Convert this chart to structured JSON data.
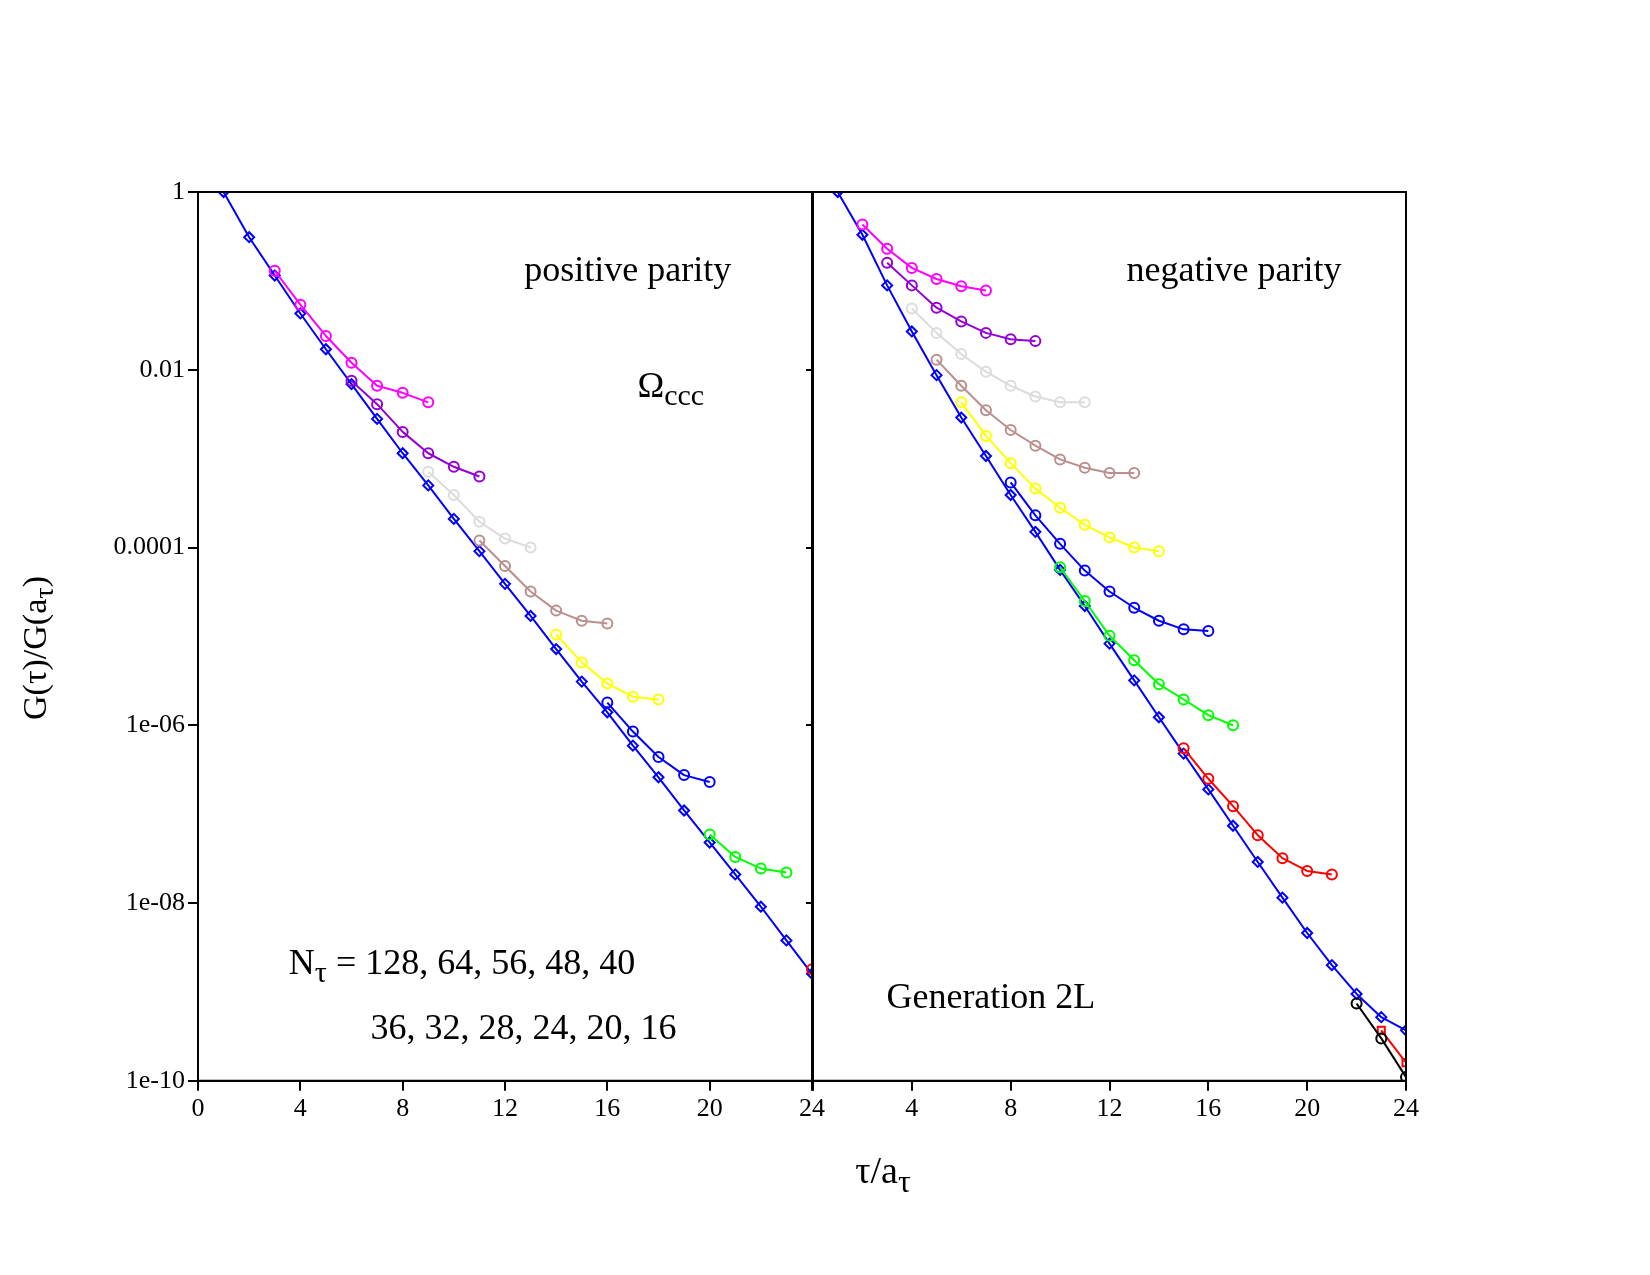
{
  "chart_data": [
    {
      "type": "line",
      "ylabel": "G(τ)/G(a$_{τ}$)",
      "xlabel": "τ/a$_{τ}$",
      "log": "y",
      "x": [
        1,
        2,
        3,
        4,
        5,
        6,
        7,
        8,
        9,
        10,
        11,
        12,
        13,
        14,
        15,
        16,
        17,
        18,
        19,
        20,
        21,
        22,
        23,
        24
      ],
      "xlim": [
        0,
        24
      ],
      "xticks": [
        0,
        4,
        8,
        12,
        16,
        20,
        24
      ],
      "ylim": [
        1e-10,
        1
      ],
      "yticks": [
        {
          "value": 1e-10,
          "label": "1e-10"
        },
        {
          "value": 1e-08,
          "label": "1e-08"
        },
        {
          "value": 1e-06,
          "label": "1e-06"
        },
        {
          "value": 0.0001,
          "label": "0.0001"
        },
        {
          "value": 0.01,
          "label": "0.01"
        },
        {
          "value": 1,
          "label": "1"
        }
      ],
      "annotations": [
        "positive parity",
        "Ω$_{ccc}$",
        "N$_{τ}$ = 128, 64, 56, 48, 40",
        "36, 32, 28, 24, 20, 16"
      ],
      "series": [
        {
          "color": "#ff00ff",
          "marker": "circle",
          "values": [
            null,
            null,
            0.13,
            0.054,
            0.024,
            0.012,
            0.0066,
            0.0055,
            0.0043,
            null,
            null,
            null,
            null,
            null,
            null,
            null,
            null,
            null,
            null,
            null,
            null,
            null,
            null,
            null
          ]
        },
        {
          "color": "#9400d3",
          "marker": "circle",
          "values": [
            null,
            null,
            null,
            null,
            null,
            0.0075,
            0.0041,
            0.002,
            0.00115,
            0.00081,
            0.00063,
            null,
            null,
            null,
            null,
            null,
            null,
            null,
            null,
            null,
            null,
            null,
            null,
            null
          ]
        },
        {
          "color": "#dcdcdc",
          "marker": "circle",
          "values": [
            null,
            null,
            null,
            null,
            null,
            null,
            null,
            null,
            0.00071,
            0.00039,
            0.000195,
            0.000126,
            0.0001,
            null,
            null,
            null,
            null,
            null,
            null,
            null,
            null,
            null,
            null,
            null
          ]
        },
        {
          "color": "#bc8f8f",
          "marker": "circle",
          "values": [
            null,
            null,
            null,
            null,
            null,
            null,
            null,
            null,
            null,
            null,
            0.00012,
            6.2e-05,
            3.2e-05,
            1.95e-05,
            1.5e-05,
            1.4e-05,
            null,
            null,
            null,
            null,
            null,
            null,
            null,
            null
          ]
        },
        {
          "color": "#ffff00",
          "marker": "circle",
          "values": [
            null,
            null,
            null,
            null,
            null,
            null,
            null,
            null,
            null,
            null,
            null,
            null,
            null,
            1.05e-05,
            5.1e-06,
            2.95e-06,
            2.1e-06,
            1.95e-06,
            null,
            null,
            null,
            null,
            null,
            null
          ]
        },
        {
          "color": "#0000ff",
          "marker": "circle",
          "values": [
            null,
            null,
            null,
            null,
            null,
            null,
            null,
            null,
            null,
            null,
            null,
            null,
            null,
            null,
            null,
            1.8e-06,
            8.5e-07,
            4.4e-07,
            2.75e-07,
            2.3e-07,
            null,
            null,
            null,
            null
          ]
        },
        {
          "color": "#00ff00",
          "marker": "circle",
          "values": [
            null,
            null,
            null,
            null,
            null,
            null,
            null,
            null,
            null,
            null,
            null,
            null,
            null,
            null,
            null,
            null,
            null,
            null,
            null,
            5.9e-08,
            3.3e-08,
            2.45e-08,
            2.2e-08,
            null
          ]
        },
        {
          "color": "#ff0000",
          "marker": "circle",
          "values": [
            null,
            null,
            null,
            null,
            null,
            null,
            null,
            null,
            null,
            null,
            null,
            null,
            null,
            null,
            null,
            null,
            null,
            null,
            null,
            null,
            null,
            null,
            null,
            1.8e-09
          ]
        },
        {
          "color": "#0000ff",
          "marker": "diamond",
          "values": [
            1,
            0.31,
            0.115,
            0.043,
            0.017,
            0.0069,
            0.0028,
            0.00115,
            0.0005,
            0.00021,
            9.1e-05,
            3.9e-05,
            1.7e-05,
            7.2e-06,
            3.1e-06,
            1.4e-06,
            5.9e-07,
            2.6e-07,
            1.1e-07,
            4.8e-08,
            2.1e-08,
            9.1e-09,
            3.8e-09,
            1.6e-09
          ]
        }
      ]
    },
    {
      "type": "line",
      "log": "y",
      "tick_labels": "x",
      "x": [
        1,
        2,
        3,
        4,
        5,
        6,
        7,
        8,
        9,
        10,
        11,
        12,
        13,
        14,
        15,
        16,
        17,
        18,
        19,
        20,
        21,
        22,
        23,
        24
      ],
      "xlim": [
        0,
        24
      ],
      "xticks": [
        {
          "value": 0,
          "label": null
        },
        4,
        8,
        12,
        16,
        20,
        24
      ],
      "ylim": [
        1e-10,
        1
      ],
      "yticks": [
        {
          "value": 1e-10,
          "label": null
        },
        {
          "value": 1e-08,
          "label": null
        },
        {
          "value": 1e-06,
          "label": null
        },
        {
          "value": 0.0001,
          "label": null
        },
        {
          "value": 0.01,
          "label": null
        },
        {
          "value": 1,
          "label": null
        }
      ],
      "annotations": [
        "negative parity",
        "Generation 2L"
      ],
      "series": [
        {
          "color": "#ff00ff",
          "marker": "circle",
          "values": [
            null,
            0.43,
            0.23,
            0.14,
            0.105,
            0.087,
            0.078,
            null,
            null,
            null,
            null,
            null,
            null,
            null,
            null,
            null,
            null,
            null,
            null,
            null,
            null,
            null,
            null,
            null
          ]
        },
        {
          "color": "#9400d3",
          "marker": "circle",
          "values": [
            null,
            null,
            0.16,
            0.089,
            0.05,
            0.035,
            0.026,
            0.022,
            0.021,
            null,
            null,
            null,
            null,
            null,
            null,
            null,
            null,
            null,
            null,
            null,
            null,
            null,
            null,
            null
          ]
        },
        {
          "color": "#dcdcdc",
          "marker": "circle",
          "values": [
            null,
            null,
            null,
            0.049,
            0.026,
            0.015,
            0.0095,
            0.0066,
            0.005,
            0.0043,
            0.0043,
            null,
            null,
            null,
            null,
            null,
            null,
            null,
            null,
            null,
            null,
            null,
            null,
            null
          ]
        },
        {
          "color": "#bc8f8f",
          "marker": "circle",
          "values": [
            null,
            null,
            null,
            null,
            0.013,
            0.0066,
            0.0035,
            0.0021,
            0.0014,
            0.00098,
            0.00079,
            0.00069,
            0.00069,
            null,
            null,
            null,
            null,
            null,
            null,
            null,
            null,
            null,
            null,
            null
          ]
        },
        {
          "color": "#ffff00",
          "marker": "circle",
          "values": [
            null,
            null,
            null,
            null,
            null,
            0.0043,
            0.0018,
            0.00089,
            0.00046,
            0.00028,
            0.00018,
            0.00013,
            0.0001,
            9.1e-05,
            null,
            null,
            null,
            null,
            null,
            null,
            null,
            null,
            null,
            null
          ]
        },
        {
          "color": "#0000ff",
          "marker": "circle",
          "values": [
            null,
            null,
            null,
            null,
            null,
            null,
            null,
            0.00054,
            0.00023,
            0.00011,
            5.5e-05,
            3.2e-05,
            2.1e-05,
            1.5e-05,
            1.2e-05,
            1.15e-05,
            null,
            null,
            null,
            null,
            null,
            null,
            null,
            null
          ]
        },
        {
          "color": "#00ff00",
          "marker": "circle",
          "values": [
            null,
            null,
            null,
            null,
            null,
            null,
            null,
            null,
            null,
            6e-05,
            2.5e-05,
            1.02e-05,
            5.4e-06,
            2.9e-06,
            1.95e-06,
            1.3e-06,
            1e-06,
            null,
            null,
            null,
            null,
            null,
            null,
            null
          ]
        },
        {
          "color": "#ff0000",
          "marker": "circle",
          "values": [
            null,
            null,
            null,
            null,
            null,
            null,
            null,
            null,
            null,
            null,
            null,
            null,
            null,
            null,
            5.5e-07,
            2.5e-07,
            1.23e-07,
            5.8e-08,
            3.2e-08,
            2.3e-08,
            2.1e-08,
            null,
            null,
            null
          ]
        },
        {
          "color": "#000000",
          "marker": "circle",
          "values": [
            null,
            null,
            null,
            null,
            null,
            null,
            null,
            null,
            null,
            null,
            null,
            null,
            null,
            null,
            null,
            null,
            null,
            null,
            null,
            null,
            null,
            7.4e-10,
            3e-10,
            1.1e-10
          ]
        },
        {
          "color": "#ff0000",
          "marker": "square",
          "values": [
            null,
            null,
            null,
            null,
            null,
            null,
            null,
            null,
            null,
            null,
            null,
            null,
            null,
            null,
            null,
            null,
            null,
            null,
            null,
            null,
            null,
            null,
            3.7e-10,
            1.6e-10
          ]
        },
        {
          "color": "#0000ff",
          "marker": "diamond",
          "values": [
            1,
            0.33,
            0.089,
            0.027,
            0.0087,
            0.0029,
            0.00107,
            0.00039,
            0.00015,
            5.6e-05,
            2.2e-05,
            8.3e-06,
            3.2e-06,
            1.23e-06,
            4.8e-07,
            1.9e-07,
            7.4e-08,
            2.9e-08,
            1.15e-08,
            4.6e-09,
            2e-09,
            9.5e-10,
            5.2e-10,
            3.7e-10
          ]
        }
      ]
    }
  ]
}
